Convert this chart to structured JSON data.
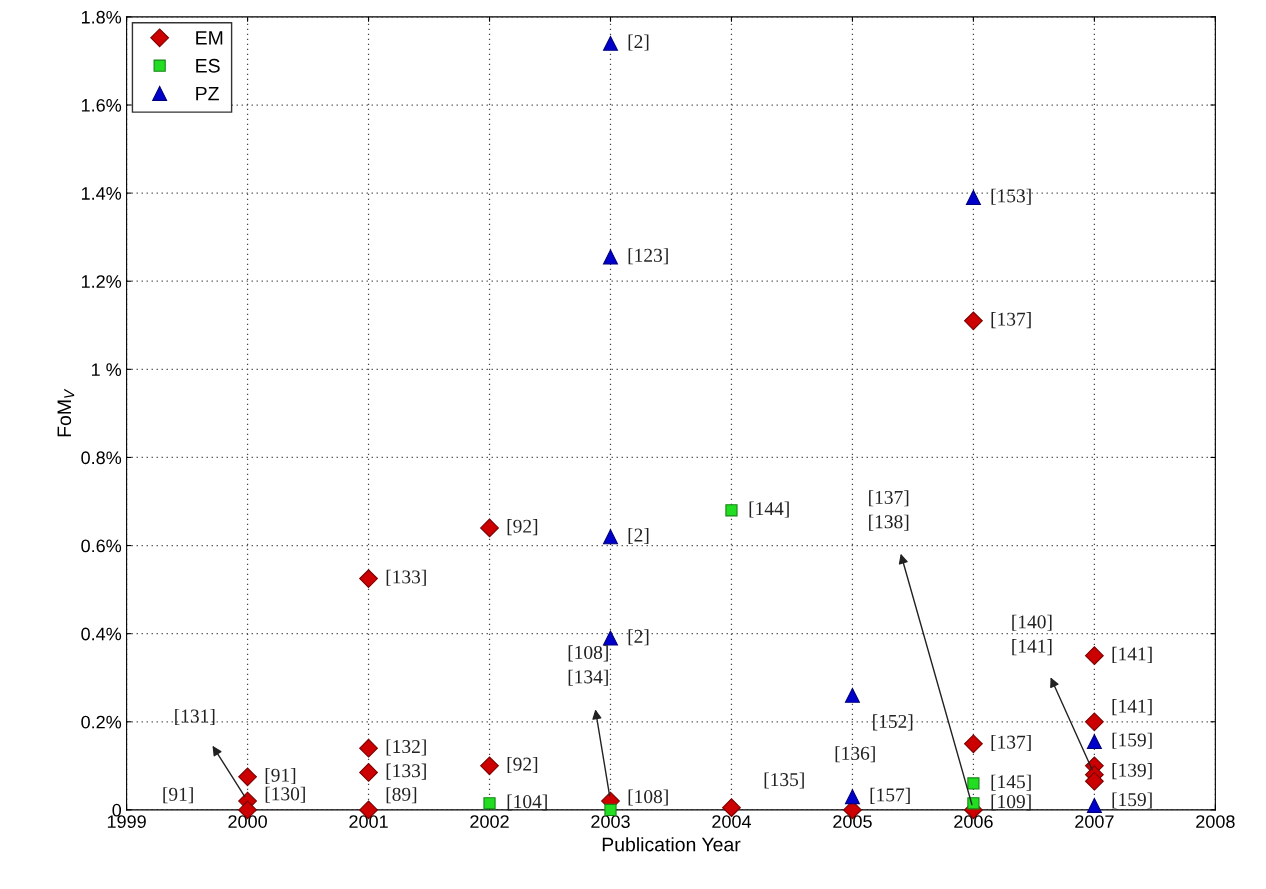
{
  "chart_data": {
    "type": "scatter",
    "xlabel": "Publication Year",
    "ylabel": "FoM$_{V}$",
    "xlim": [
      1999,
      2008
    ],
    "ylim": [
      0,
      1.8
    ],
    "xticks": [
      1999,
      2000,
      2001,
      2002,
      2003,
      2004,
      2005,
      2006,
      2007,
      2008
    ],
    "yticks": [
      {
        "value": 0,
        "label": "0"
      },
      {
        "value": 0.2,
        "label": "0.2%"
      },
      {
        "value": 0.4,
        "label": "0.4%"
      },
      {
        "value": 0.6,
        "label": "0.6%"
      },
      {
        "value": 0.8,
        "label": "0.8%"
      },
      {
        "value": 1,
        "label": "1 %"
      },
      {
        "value": 1.2,
        "label": "1.2%"
      },
      {
        "value": 1.4,
        "label": "1.4%"
      },
      {
        "value": 1.6,
        "label": "1.6%"
      },
      {
        "value": 1.8,
        "label": "1.8%"
      }
    ],
    "grid": true,
    "legend": "top left",
    "series": [
      {
        "name": "EM",
        "color": "#cc0000",
        "marker": "diamond",
        "x": [
          2000,
          2000,
          2000,
          2001,
          2001,
          2001,
          2001,
          2002,
          2002,
          2003,
          2004,
          2005,
          2006,
          2006,
          2006,
          2007,
          2007,
          2007,
          2007,
          2007
        ],
        "values": [
          0.075,
          0.02,
          0,
          0.525,
          0.14,
          0.085,
          0,
          0.64,
          0.1,
          0.02,
          0.005,
          0,
          1.11,
          0.15,
          0,
          0.35,
          0.2,
          0.1,
          0.08,
          0.065
        ]
      },
      {
        "name": "ES",
        "color": "#22dd22",
        "marker": "square",
        "x": [
          2002,
          2003,
          2004,
          2006,
          2006
        ],
        "values": [
          0.015,
          0,
          0.68,
          0.06,
          0.015
        ]
      },
      {
        "name": "PZ",
        "color": "#0000cc",
        "marker": "triangle",
        "x": [
          2003,
          2003,
          2003,
          2003,
          2005,
          2005,
          2006,
          2007,
          2007
        ],
        "values": [
          1.74,
          1.255,
          0.62,
          0.39,
          0.26,
          0.03,
          1.39,
          0.155,
          0.01
        ]
      }
    ],
    "annotations": [
      {
        "text": "[91]",
        "x": 2000,
        "y": 0.075
      },
      {
        "text": "[130]",
        "x": 2000,
        "y": 0.02
      },
      {
        "text": "[91]",
        "x": 2000,
        "y": 0
      },
      {
        "text": "[131]",
        "x": 2000,
        "y": 0.02
      },
      {
        "text": "[133]",
        "x": 2001,
        "y": 0.525
      },
      {
        "text": "[132]",
        "x": 2001,
        "y": 0.14
      },
      {
        "text": "[133]",
        "x": 2001,
        "y": 0.085
      },
      {
        "text": "[89]",
        "x": 2001,
        "y": 0
      },
      {
        "text": "[92]",
        "x": 2002,
        "y": 0.64
      },
      {
        "text": "[92]",
        "x": 2002,
        "y": 0.1
      },
      {
        "text": "[104]",
        "x": 2002,
        "y": 0.015
      },
      {
        "text": "[2]",
        "x": 2003,
        "y": 1.74
      },
      {
        "text": "[123]",
        "x": 2003,
        "y": 1.255
      },
      {
        "text": "[2]",
        "x": 2003,
        "y": 0.62
      },
      {
        "text": "[2]",
        "x": 2003,
        "y": 0.39
      },
      {
        "text": "[108]",
        "x": 2003,
        "y": 0.02
      },
      {
        "text": "[108]\n[134]",
        "x": 2003,
        "y": 0.02
      },
      {
        "text": "[144]",
        "x": 2004,
        "y": 0.68
      },
      {
        "text": "[135]",
        "x": 2004,
        "y": 0.005
      },
      {
        "text": "[152]",
        "x": 2005,
        "y": 0.26
      },
      {
        "text": "[136]",
        "x": 2005,
        "y": 0.03
      },
      {
        "text": "[157]",
        "x": 2005,
        "y": 0.03
      },
      {
        "text": "[153]",
        "x": 2006,
        "y": 1.39
      },
      {
        "text": "[137]",
        "x": 2006,
        "y": 1.11
      },
      {
        "text": "[137]",
        "x": 2006,
        "y": 0.15
      },
      {
        "text": "[145]",
        "x": 2006,
        "y": 0.06
      },
      {
        "text": "[109]",
        "x": 2006,
        "y": 0.015
      },
      {
        "text": "[137]\n[138]",
        "x": 2006,
        "y": 0
      },
      {
        "text": "[141]",
        "x": 2007,
        "y": 0.35
      },
      {
        "text": "[141]",
        "x": 2007,
        "y": 0.2
      },
      {
        "text": "[159]",
        "x": 2007,
        "y": 0.155
      },
      {
        "text": "[139]",
        "x": 2007,
        "y": 0.08
      },
      {
        "text": "[159]",
        "x": 2007,
        "y": 0.01
      },
      {
        "text": "[140]\n[141]",
        "x": 2007,
        "y": 0.08
      }
    ]
  }
}
